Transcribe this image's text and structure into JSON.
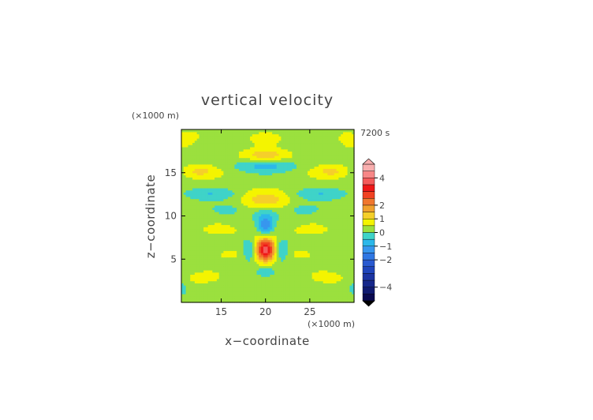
{
  "chart_data": {
    "type": "heatmap",
    "title": "vertical velocity",
    "time_label": "7200 s",
    "xlabel": "x−coordinate",
    "ylabel": "z−coordinate",
    "x_unit": "(×1000 m)",
    "y_unit": "(×1000 m)",
    "xlim": [
      10.5,
      30
    ],
    "ylim": [
      0,
      20
    ],
    "x_ticks": [
      15,
      20,
      25
    ],
    "y_ticks": [
      5,
      10,
      15
    ],
    "x_tick_labels": [
      "15",
      "20",
      "25"
    ],
    "y_tick_labels": [
      "5",
      "10",
      "15"
    ],
    "colorbar": {
      "levels": [
        -5,
        -4.5,
        -4,
        -3.5,
        -3,
        -2.5,
        -2,
        -1.5,
        -1,
        -0.5,
        0,
        0.5,
        1,
        1.5,
        2,
        2.5,
        3,
        3.5,
        4,
        4.5,
        5
      ],
      "colors": [
        "#0a0a50",
        "#101a70",
        "#16278a",
        "#1c34a2",
        "#2045bb",
        "#2a5ad0",
        "#2f77e3",
        "#3796ee",
        "#2cb8ea",
        "#3fd3c8",
        "#9be03e",
        "#f4f400",
        "#f5cf2a",
        "#f1a12e",
        "#f0772e",
        "#f14222",
        "#ee1818",
        "#f45b5b",
        "#f78787",
        "#f9aeae"
      ],
      "tick_values": [
        4,
        2,
        1,
        0,
        -1,
        -2,
        -4
      ],
      "tick_labels": [
        "4",
        "2",
        "1",
        "0",
        "−1",
        "−2",
        "−4"
      ]
    },
    "features": [
      {
        "x": 20.0,
        "z": 6.1,
        "w": 3.4,
        "sx": 0.85,
        "sz": 0.95
      },
      {
        "x": 20.0,
        "z": 8.9,
        "w": -1.6,
        "sx": 0.55,
        "sz": 0.7
      },
      {
        "x": 18.3,
        "z": 6.2,
        "w": -1.1,
        "sx": 0.6,
        "sz": 0.9
      },
      {
        "x": 21.7,
        "z": 6.2,
        "w": -1.1,
        "sx": 0.6,
        "sz": 0.9
      },
      {
        "x": 20.0,
        "z": 11.9,
        "w": 0.9,
        "sx": 1.9,
        "sz": 0.8
      },
      {
        "x": 20.0,
        "z": 10.3,
        "w": -0.6,
        "sx": 1.0,
        "sz": 0.6
      },
      {
        "x": 20.0,
        "z": 15.8,
        "w": -0.8,
        "sx": 2.6,
        "sz": 0.45
      },
      {
        "x": 20.0,
        "z": 17.1,
        "w": 0.9,
        "sx": 2.0,
        "sz": 0.45
      },
      {
        "x": 12.5,
        "z": 15.2,
        "w": 0.8,
        "sx": 1.4,
        "sz": 0.55
      },
      {
        "x": 27.5,
        "z": 15.2,
        "w": 0.8,
        "sx": 1.4,
        "sz": 0.55
      },
      {
        "x": 13.5,
        "z": 12.6,
        "w": -0.6,
        "sx": 2.4,
        "sz": 0.45
      },
      {
        "x": 26.5,
        "z": 12.6,
        "w": -0.6,
        "sx": 2.4,
        "sz": 0.45
      },
      {
        "x": 15.5,
        "z": 10.7,
        "w": -0.6,
        "sx": 1.2,
        "sz": 0.45
      },
      {
        "x": 24.5,
        "z": 10.7,
        "w": -0.6,
        "sx": 1.2,
        "sz": 0.45
      },
      {
        "x": 15.0,
        "z": 8.3,
        "w": 0.4,
        "sx": 1.8,
        "sz": 0.5
      },
      {
        "x": 25.0,
        "z": 8.3,
        "w": 0.4,
        "sx": 1.8,
        "sz": 0.5
      },
      {
        "x": 20.0,
        "z": 3.6,
        "w": -0.5,
        "sx": 0.7,
        "sz": 0.4
      },
      {
        "x": 20.0,
        "z": 19.2,
        "w": 0.5,
        "sx": 1.5,
        "sz": 0.6
      },
      {
        "x": 11.0,
        "z": 19.0,
        "w": 0.5,
        "sx": 1.2,
        "sz": 0.7
      },
      {
        "x": 29.5,
        "z": 19.0,
        "w": 0.5,
        "sx": 1.0,
        "sz": 0.7
      },
      {
        "x": 10.6,
        "z": 1.6,
        "w": -0.6,
        "sx": 0.35,
        "sz": 0.6
      },
      {
        "x": 29.9,
        "z": 1.6,
        "w": -0.6,
        "sx": 0.35,
        "sz": 0.6
      },
      {
        "x": 13.0,
        "z": 2.8,
        "w": 0.5,
        "sx": 1.4,
        "sz": 0.5
      },
      {
        "x": 27.0,
        "z": 2.8,
        "w": 0.5,
        "sx": 1.4,
        "sz": 0.5
      },
      {
        "x": 16.0,
        "z": 5.7,
        "w": 0.4,
        "sx": 1.1,
        "sz": 0.5
      },
      {
        "x": 24.0,
        "z": 5.7,
        "w": 0.4,
        "sx": 1.1,
        "sz": 0.5
      }
    ]
  }
}
